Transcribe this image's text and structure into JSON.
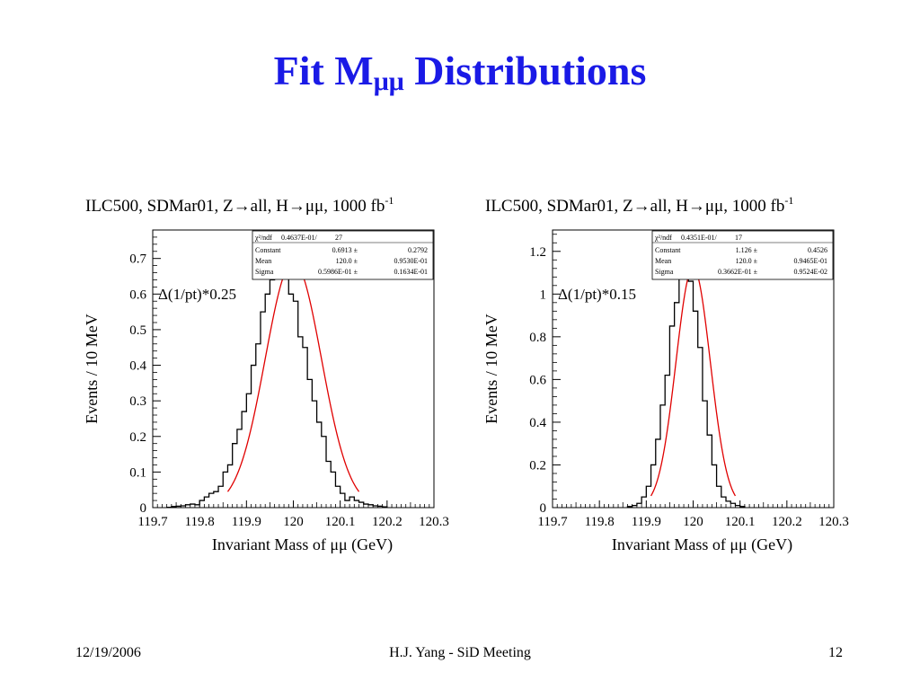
{
  "slide": {
    "title_main": "Fit M",
    "title_sub": "μμ",
    "title_rest": " Distributions"
  },
  "footer": {
    "date": "12/19/2006",
    "center": "H.J. Yang - SiD Meeting",
    "page": "12"
  },
  "colors": {
    "title": "#1a1ae6",
    "fit": "#e00000",
    "histogram": "#000000"
  },
  "chart_data": [
    {
      "type": "histogram",
      "title": "ILC500, SDMar01, Z→all, H→μμ, 1000 fb",
      "title_sup": "-1",
      "xlabel": "Invariant Mass of μμ (GeV)",
      "ylabel": "Events / 10 MeV",
      "annotation": "Δ(1/pt)*0.25",
      "xlim": [
        119.7,
        120.3
      ],
      "ylim": [
        0,
        0.78
      ],
      "xticks": [
        "119.7",
        "119.8",
        "119.9",
        "120",
        "120.1",
        "120.2",
        "120.3"
      ],
      "yticks": [
        "0",
        "0.1",
        "0.2",
        "0.3",
        "0.4",
        "0.5",
        "0.6",
        "0.7"
      ],
      "bin_width": 0.01,
      "bin_start": 119.73,
      "values": [
        0.001,
        0.003,
        0.004,
        0.005,
        0.008,
        0.01,
        0.008,
        0.02,
        0.03,
        0.04,
        0.045,
        0.06,
        0.1,
        0.12,
        0.18,
        0.22,
        0.27,
        0.32,
        0.4,
        0.46,
        0.55,
        0.6,
        0.64,
        0.66,
        0.7,
        0.66,
        0.6,
        0.58,
        0.48,
        0.45,
        0.36,
        0.3,
        0.24,
        0.2,
        0.13,
        0.1,
        0.06,
        0.04,
        0.02,
        0.03,
        0.02,
        0.015,
        0.01,
        0.008,
        0.005,
        0.004,
        0.002
      ],
      "fit": {
        "constant": 0.6913,
        "mean": 120.0,
        "sigma": 0.05986,
        "range": [
          119.86,
          120.14
        ]
      },
      "stats_box": {
        "chi2_label": "χ²/ndf",
        "chi2_value": "0.4637E-01/",
        "ndf": "27",
        "rows": [
          {
            "name": "Constant",
            "value": "0.6913",
            "error": "0.2792"
          },
          {
            "name": "Mean",
            "value": "120.0",
            "error": "0.9530E-01"
          },
          {
            "name": "Sigma",
            "value": "0.5986E-01",
            "error": "0.1634E-01"
          }
        ]
      }
    },
    {
      "type": "histogram",
      "title": "ILC500, SDMar01, Z→all, H→μμ, 1000 fb",
      "title_sup": "-1",
      "xlabel": "Invariant Mass of μμ (GeV)",
      "ylabel": "Events / 10 MeV",
      "annotation": "Δ(1/pt)*0.15",
      "xlim": [
        119.7,
        120.3
      ],
      "ylim": [
        0,
        1.3
      ],
      "xticks": [
        "119.7",
        "119.8",
        "119.9",
        "120",
        "120.1",
        "120.2",
        "120.3"
      ],
      "yticks": [
        "0",
        "0.2",
        "0.4",
        "0.6",
        "0.8",
        "1",
        "1.2"
      ],
      "bin_width": 0.01,
      "bin_start": 119.86,
      "values": [
        0.005,
        0.01,
        0.02,
        0.05,
        0.1,
        0.2,
        0.32,
        0.48,
        0.62,
        0.85,
        0.96,
        1.1,
        1.16,
        1.06,
        0.92,
        0.75,
        0.5,
        0.34,
        0.2,
        0.1,
        0.05,
        0.03,
        0.02,
        0.01,
        0.005
      ],
      "fit": {
        "constant": 1.126,
        "mean": 120.0,
        "sigma": 0.03662,
        "range": [
          119.91,
          120.09
        ]
      },
      "stats_box": {
        "chi2_label": "χ²/ndf",
        "chi2_value": "0.4351E-01/",
        "ndf": "17",
        "rows": [
          {
            "name": "Constant",
            "value": "1.126",
            "error": "0.4526"
          },
          {
            "name": "Mean",
            "value": "120.0",
            "error": "0.9465E-01"
          },
          {
            "name": "Sigma",
            "value": "0.3662E-01",
            "error": "0.9524E-02"
          }
        ]
      }
    }
  ]
}
